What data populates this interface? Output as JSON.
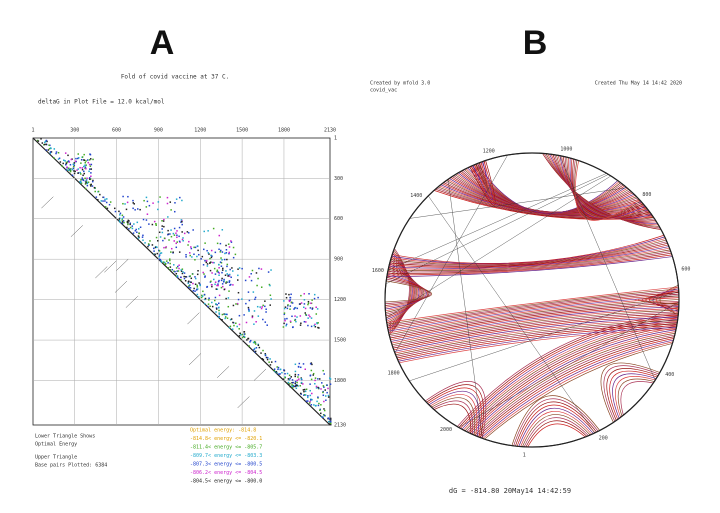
{
  "panel_a": {
    "label": "A",
    "title": "Fold of covid vaccine at 37 C.",
    "subtitle": "deltaG in Plot File =  12.0 kcal/mol",
    "ticks": [
      "1",
      "300",
      "600",
      "900",
      "1200",
      "1500",
      "1800",
      "2130"
    ],
    "legend_left": [
      "Lower Triangle Shows",
      "Optimal Energy",
      "Upper Triangle",
      "Base pairs Plotted: 6384"
    ],
    "legend_right": [
      {
        "text": "Optimal energy: -814.8",
        "color": "#e0a000"
      },
      {
        "text": "-814.8< energy <= -820.1",
        "color": "#e0a000"
      },
      {
        "text": "-811.4< energy <= -805.7",
        "color": "#44aa22"
      },
      {
        "text": "-809.7< energy <= -803.3",
        "color": "#22aacc"
      },
      {
        "text": "-807.3< energy <= -800.5",
        "color": "#2244cc"
      },
      {
        "text": "-806.2< energy <= -804.5",
        "color": "#cc22cc"
      },
      {
        "text": "-804.5< energy <= -800.0",
        "color": "#222222"
      }
    ]
  },
  "panel_b": {
    "label": "B",
    "header_left": "Created by mfold 3.0",
    "header_sub": "covid_vac",
    "header_right": "Created Thu May 14 14:42 2020",
    "circle_labels": [
      "1000",
      "1200",
      "1400",
      "1600",
      "1800",
      "2000",
      "1",
      "200",
      "400",
      "600",
      "800"
    ],
    "footer": "dG = -814.80 20May14 14:42:59"
  }
}
